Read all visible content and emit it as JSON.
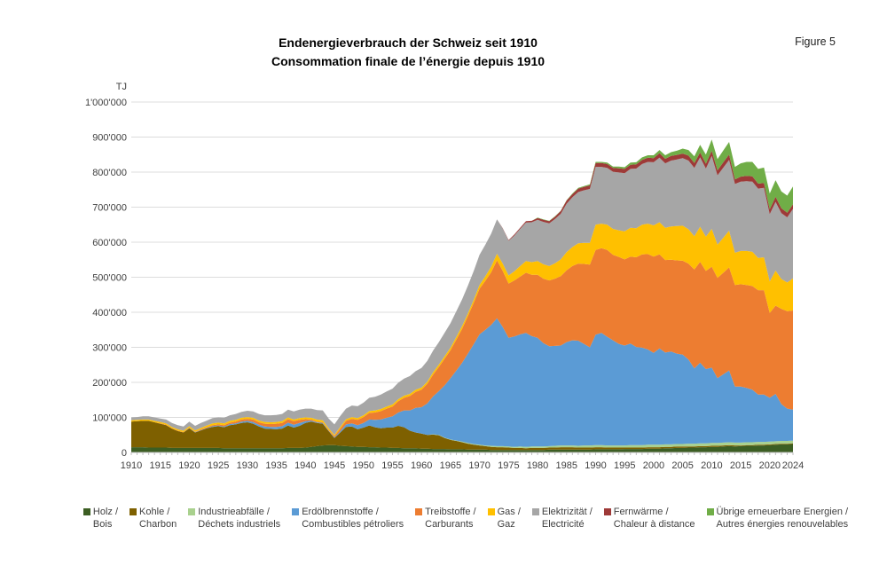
{
  "header": {
    "title_de": "Endenergieverbrauch der Schweiz seit 1910",
    "title_fr": "Consommation finale de l’énergie depuis 1910",
    "figure_label": "Figure 5"
  },
  "chart_data": {
    "type": "area",
    "stacked": true,
    "title": "Endenergieverbrauch der Schweiz seit 1910 / Consommation finale de l’énergie depuis 1910",
    "unit": "TJ",
    "value_scale_note": "series values are in 1000 TJ (multiply by 1000 for TJ)",
    "grid": "horizontal",
    "legend_position": "bottom",
    "y_axis": {
      "title": "TJ",
      "min": 0,
      "max": 1000000,
      "tick_interval": 100000,
      "tick_labels": [
        "0",
        "100'000",
        "200'000",
        "300'000",
        "400'000",
        "500'000",
        "600'000",
        "700'000",
        "800'000",
        "900'000",
        "1'000'000"
      ]
    },
    "x_axis": {
      "min": 1910,
      "max": 2024,
      "ticks": [
        1910,
        1915,
        1920,
        1925,
        1930,
        1935,
        1940,
        1945,
        1950,
        1955,
        1960,
        1965,
        1970,
        1975,
        1980,
        1985,
        1990,
        1995,
        2000,
        2005,
        2010,
        2015,
        2020,
        2024
      ]
    },
    "years_start": 1910,
    "years_end": 2024,
    "series": [
      {
        "key": "holz",
        "label_de": "Holz /",
        "label_fr": "Bois",
        "color": "#3C5E23",
        "values_kTJ": [
          15,
          15,
          15,
          14,
          14,
          14,
          14,
          13,
          13,
          13,
          13,
          13,
          13,
          13,
          13,
          13,
          12,
          12,
          12,
          12,
          12,
          12,
          12,
          12,
          12,
          12,
          12,
          13,
          13,
          13,
          14,
          16,
          18,
          20,
          21,
          21,
          19,
          18,
          17,
          16,
          16,
          15,
          15,
          14,
          14,
          13,
          13,
          12,
          12,
          12,
          11,
          11,
          10,
          10,
          10,
          9,
          9,
          9,
          8,
          8,
          8,
          8,
          7,
          7,
          7,
          7,
          7,
          7,
          7,
          7,
          7,
          7,
          8,
          8,
          8,
          8,
          8,
          8,
          8,
          8,
          9,
          9,
          9,
          9,
          9,
          10,
          10,
          10,
          10,
          11,
          11,
          11,
          12,
          12,
          13,
          13,
          14,
          14,
          15,
          15,
          16,
          16,
          17,
          18,
          17,
          18,
          19,
          19,
          20,
          20,
          21,
          22,
          23,
          23,
          24
        ]
      },
      {
        "key": "kohle",
        "label_de": "Kohle /",
        "label_fr": "Charbon",
        "color": "#7E6000",
        "values_kTJ": [
          73,
          74,
          75,
          76,
          72,
          68,
          64,
          55,
          48,
          44,
          56,
          44,
          50,
          56,
          60,
          62,
          60,
          66,
          68,
          72,
          74,
          70,
          62,
          56,
          55,
          54,
          56,
          64,
          58,
          63,
          70,
          72,
          66,
          62,
          40,
          20,
          38,
          55,
          57,
          50,
          55,
          62,
          57,
          55,
          57,
          58,
          63,
          60,
          50,
          45,
          43,
          39,
          41,
          39,
          31,
          27,
          24,
          20,
          17,
          14,
          12,
          10,
          9,
          8,
          8,
          7,
          6,
          6,
          5,
          6,
          6,
          6,
          6,
          6,
          7,
          7,
          7,
          6,
          6,
          6,
          6,
          6,
          5,
          5,
          5,
          4,
          4,
          4,
          4,
          4,
          4,
          4,
          4,
          4,
          4,
          4,
          3,
          3,
          3,
          3,
          3,
          3,
          3,
          3,
          3,
          2,
          2,
          2,
          2,
          2,
          2,
          2,
          2,
          2,
          2
        ]
      },
      {
        "key": "industrieabfaelle",
        "label_de": "Industrieabfälle /",
        "label_fr": "Déchets industriels",
        "color": "#A9D18E",
        "values_kTJ": [
          0,
          0,
          0,
          0,
          0,
          0,
          0,
          0,
          0,
          0,
          0,
          0,
          0,
          0,
          0,
          0,
          0,
          0,
          0,
          0,
          0,
          0,
          0,
          0,
          0,
          0,
          0,
          0,
          0,
          0,
          0,
          0,
          0,
          0,
          0,
          0,
          0,
          0,
          0,
          0,
          0,
          0,
          0,
          0,
          0,
          0,
          0,
          0,
          0,
          0,
          0,
          0,
          1,
          1,
          1,
          1,
          1,
          2,
          2,
          2,
          2,
          2,
          3,
          3,
          3,
          3,
          3,
          4,
          4,
          4,
          4,
          4,
          4,
          5,
          5,
          5,
          5,
          5,
          6,
          6,
          6,
          6,
          6,
          6,
          6,
          6,
          7,
          7,
          7,
          7,
          7,
          7,
          7,
          7,
          7,
          7,
          8,
          8,
          8,
          8,
          8,
          8,
          8,
          8,
          8,
          8,
          8,
          8,
          8,
          8,
          8,
          8,
          8,
          8,
          8
        ]
      },
      {
        "key": "erdoelbrennstoffe",
        "label_de": "Erdölbrennstoffe /",
        "label_fr": "Combustibles pétroliers",
        "color": "#5B9BD5",
        "values_kTJ": [
          0,
          0,
          0,
          0,
          0,
          0,
          0,
          0,
          0,
          0,
          1,
          1,
          1,
          1,
          2,
          2,
          2,
          3,
          3,
          4,
          4,
          5,
          5,
          6,
          6,
          7,
          7,
          8,
          8,
          8,
          5,
          3,
          2,
          2,
          1,
          2,
          4,
          7,
          9,
          12,
          13,
          17,
          21,
          25,
          28,
          32,
          38,
          48,
          58,
          70,
          75,
          90,
          108,
          125,
          150,
          175,
          200,
          225,
          255,
          285,
          315,
          330,
          345,
          365,
          340,
          310,
          315,
          320,
          325,
          315,
          310,
          295,
          285,
          285,
          285,
          295,
          300,
          300,
          290,
          280,
          315,
          320,
          310,
          300,
          290,
          285,
          290,
          280,
          278,
          272,
          262,
          275,
          262,
          265,
          258,
          255,
          240,
          215,
          230,
          212,
          215,
          185,
          195,
          205,
          160,
          160,
          155,
          150,
          135,
          135,
          125,
          135,
          105,
          92,
          88
        ]
      },
      {
        "key": "treibstoffe",
        "label_de": "Treibstoffe /",
        "label_fr": "Carburants",
        "color": "#ED7D31",
        "values_kTJ": [
          0,
          0,
          0,
          0,
          0,
          1,
          1,
          1,
          1,
          1,
          1,
          1,
          2,
          2,
          3,
          3,
          4,
          4,
          5,
          6,
          6,
          7,
          7,
          8,
          8,
          9,
          9,
          10,
          10,
          9,
          6,
          3,
          2,
          2,
          2,
          3,
          7,
          10,
          13,
          15,
          17,
          19,
          21,
          24,
          26,
          28,
          32,
          36,
          41,
          46,
          50,
          56,
          62,
          69,
          76,
          80,
          88,
          97,
          107,
          118,
          130,
          140,
          150,
          165,
          160,
          155,
          160,
          165,
          172,
          175,
          180,
          184,
          188,
          192,
          198,
          205,
          212,
          220,
          228,
          236,
          242,
          242,
          248,
          244,
          248,
          246,
          248,
          256,
          266,
          272,
          275,
          268,
          264,
          262,
          266,
          268,
          274,
          282,
          288,
          280,
          288,
          286,
          290,
          294,
          290,
          292,
          294,
          296,
          298,
          298,
          242,
          252,
          272,
          278,
          283
        ]
      },
      {
        "key": "gas",
        "label_de": "Gas /",
        "label_fr": "Gaz",
        "color": "#FFC000",
        "values_kTJ": [
          4,
          4,
          4,
          4,
          4,
          4,
          4,
          4,
          4,
          4,
          4,
          4,
          4,
          5,
          5,
          5,
          5,
          5,
          5,
          5,
          5,
          5,
          5,
          5,
          5,
          5,
          5,
          5,
          5,
          5,
          5,
          5,
          6,
          6,
          5,
          4,
          5,
          5,
          5,
          5,
          5,
          5,
          6,
          6,
          6,
          6,
          6,
          6,
          6,
          6,
          6,
          6,
          7,
          7,
          7,
          7,
          8,
          8,
          8,
          9,
          11,
          13,
          16,
          19,
          21,
          23,
          26,
          30,
          33,
          36,
          39,
          41,
          41,
          44,
          48,
          52,
          54,
          58,
          60,
          62,
          72,
          70,
          72,
          74,
          76,
          80,
          82,
          83,
          85,
          87,
          89,
          92,
          92,
          95,
          98,
          100,
          98,
          95,
          100,
          98,
          108,
          95,
          100,
          105,
          92,
          95,
          97,
          98,
          92,
          94,
          90,
          100,
          85,
          82,
          92
        ]
      },
      {
        "key": "elektrizitaet",
        "label_de": "Elektrizität /",
        "label_fr": "Electricité",
        "color": "#A6A6A6",
        "values_kTJ": [
          8,
          8,
          9,
          9,
          10,
          10,
          11,
          11,
          12,
          12,
          13,
          13,
          14,
          14,
          15,
          15,
          16,
          16,
          17,
          17,
          18,
          18,
          19,
          19,
          20,
          20,
          21,
          22,
          23,
          24,
          25,
          26,
          27,
          28,
          28,
          30,
          31,
          30,
          33,
          34,
          36,
          38,
          39,
          41,
          43,
          45,
          47,
          49,
          51,
          53,
          56,
          59,
          62,
          64,
          67,
          70,
          73,
          76,
          79,
          82,
          86,
          90,
          94,
          98,
          100,
          99,
          102,
          106,
          110,
          114,
          118,
          121,
          122,
          126,
          130,
          138,
          142,
          146,
          150,
          154,
          165,
          162,
          162,
          163,
          165,
          166,
          168,
          170,
          173,
          176,
          180,
          184,
          184,
          188,
          190,
          193,
          196,
          195,
          198,
          194,
          208,
          198,
          200,
          202,
          196,
          198,
          199,
          200,
          198,
          198,
          192,
          196,
          188,
          186,
          198
        ]
      },
      {
        "key": "fernwaerme",
        "label_de": "Fernwärme /",
        "label_fr": "Chaleur à distance",
        "color": "#9E3A38",
        "values_kTJ": [
          0,
          0,
          0,
          0,
          0,
          0,
          0,
          0,
          0,
          0,
          0,
          0,
          0,
          0,
          0,
          0,
          0,
          0,
          0,
          0,
          0,
          0,
          0,
          0,
          0,
          0,
          0,
          0,
          0,
          0,
          0,
          0,
          0,
          0,
          0,
          0,
          0,
          0,
          0,
          0,
          0,
          0,
          0,
          0,
          0,
          0,
          0,
          0,
          0,
          0,
          0,
          0,
          0,
          0,
          0,
          0,
          0,
          0,
          0,
          0,
          0,
          0,
          0,
          0,
          1,
          2,
          3,
          3,
          4,
          4,
          5,
          6,
          6,
          7,
          8,
          9,
          9,
          10,
          10,
          10,
          11,
          11,
          11,
          11,
          12,
          12,
          12,
          12,
          12,
          12,
          12,
          13,
          13,
          13,
          13,
          13,
          14,
          14,
          14,
          14,
          15,
          14,
          15,
          15,
          13,
          14,
          15,
          15,
          14,
          14,
          14,
          15,
          14,
          13,
          13
        ]
      },
      {
        "key": "uebrige_erneuerbare",
        "label_de": "Übrige erneuerbare Energien /",
        "label_fr": "Autres énergies renouvelables",
        "color": "#70AD47",
        "values_kTJ": [
          0,
          0,
          0,
          0,
          0,
          0,
          0,
          0,
          0,
          0,
          0,
          0,
          0,
          0,
          0,
          0,
          0,
          0,
          0,
          0,
          0,
          0,
          0,
          0,
          0,
          0,
          0,
          0,
          0,
          0,
          0,
          0,
          0,
          0,
          0,
          0,
          0,
          0,
          0,
          0,
          0,
          0,
          0,
          0,
          0,
          0,
          0,
          0,
          0,
          0,
          0,
          0,
          0,
          0,
          0,
          0,
          0,
          0,
          0,
          0,
          0,
          0,
          0,
          0,
          0,
          0,
          0,
          0,
          0,
          0,
          1,
          1,
          1,
          1,
          1,
          1,
          2,
          2,
          2,
          3,
          3,
          3,
          4,
          4,
          5,
          5,
          6,
          6,
          7,
          7,
          8,
          9,
          10,
          11,
          12,
          14,
          16,
          19,
          22,
          26,
          32,
          32,
          34,
          36,
          36,
          38,
          40,
          41,
          42,
          44,
          45,
          47,
          48,
          49,
          51
        ]
      }
    ]
  },
  "colors": {
    "gridline": "#DCDCDC",
    "axis_line": "#BFBFBF",
    "tick": "#BFBFBF",
    "axis_text": "#404040",
    "legend_text": "#404040"
  }
}
